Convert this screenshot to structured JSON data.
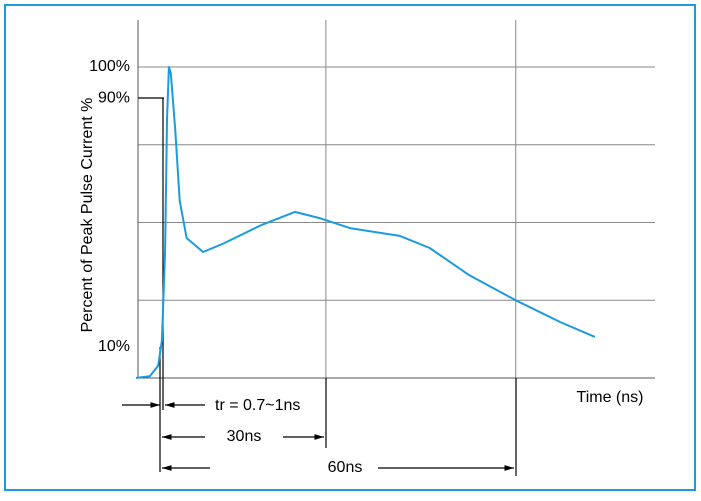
{
  "chart_data": {
    "type": "line",
    "ylabel": "Percent of Peak Pulse Current %",
    "xlabel": "Time (ns)",
    "x": [
      0,
      2.2,
      3.5,
      4.1,
      4.6,
      4.9,
      5.2,
      5.5,
      6.2,
      6.9,
      8,
      10.6,
      14,
      19.6,
      25.1,
      29,
      33.8,
      41.7,
      46.4,
      52.7,
      60,
      67,
      72.5
    ],
    "values": [
      0,
      0.6,
      4,
      12,
      41,
      83,
      100,
      98,
      80,
      57,
      45,
      40.5,
      43.4,
      49,
      53.4,
      51.4,
      48.2,
      45.7,
      41.8,
      33,
      25,
      18,
      13.2
    ],
    "color": "#1a9be0",
    "xlim": [
      0,
      82
    ],
    "ylim": [
      0,
      100
    ],
    "yticks": [
      {
        "value": 10,
        "label": "10%"
      },
      {
        "value": 90,
        "label": "90%"
      },
      {
        "value": 100,
        "label": "100%"
      }
    ],
    "ygrid": [
      25,
      50,
      75,
      100
    ],
    "xgrid": [
      30,
      60
    ],
    "annotations": [
      "tr = 0.7~1ns",
      "30ns",
      "60ns"
    ]
  }
}
